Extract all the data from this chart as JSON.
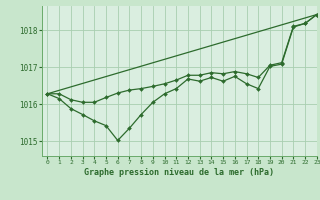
{
  "title": "Graphe pression niveau de la mer (hPa)",
  "background_color": "#c8e6cc",
  "plot_bg_color": "#daeee0",
  "grid_color": "#a8ceb0",
  "line_color": "#2d6b2d",
  "xlim": [
    -0.5,
    23
  ],
  "ylim": [
    1014.6,
    1018.65
  ],
  "yticks": [
    1015,
    1016,
    1017,
    1018
  ],
  "xticks": [
    0,
    1,
    2,
    3,
    4,
    5,
    6,
    7,
    8,
    9,
    10,
    11,
    12,
    13,
    14,
    15,
    16,
    17,
    18,
    19,
    20,
    21,
    22,
    23
  ],
  "trend_x": [
    0,
    23
  ],
  "trend_y": [
    1016.28,
    1018.42
  ],
  "upper_x": [
    0,
    1,
    2,
    3,
    4,
    5,
    6,
    7,
    8,
    9,
    10,
    11,
    12,
    13,
    14,
    15,
    16,
    17,
    18,
    19,
    20,
    21,
    22,
    23
  ],
  "upper_y": [
    1016.28,
    1016.28,
    1016.12,
    1016.05,
    1016.05,
    1016.18,
    1016.3,
    1016.38,
    1016.42,
    1016.48,
    1016.55,
    1016.65,
    1016.78,
    1016.78,
    1016.85,
    1016.82,
    1016.88,
    1016.82,
    1016.72,
    1017.05,
    1017.12,
    1018.1,
    1018.18,
    1018.42
  ],
  "lower_x": [
    0,
    1,
    2,
    3,
    4,
    5,
    6,
    7,
    8,
    9,
    10,
    11,
    12,
    13,
    14,
    15,
    16,
    17,
    18,
    19,
    20,
    21,
    22,
    23
  ],
  "lower_y": [
    1016.28,
    1016.15,
    1015.88,
    1015.72,
    1015.55,
    1015.42,
    1015.02,
    1015.35,
    1015.72,
    1016.05,
    1016.28,
    1016.42,
    1016.68,
    1016.62,
    1016.72,
    1016.62,
    1016.75,
    1016.55,
    1016.42,
    1017.02,
    1017.08,
    1018.08,
    1018.18,
    1018.42
  ]
}
